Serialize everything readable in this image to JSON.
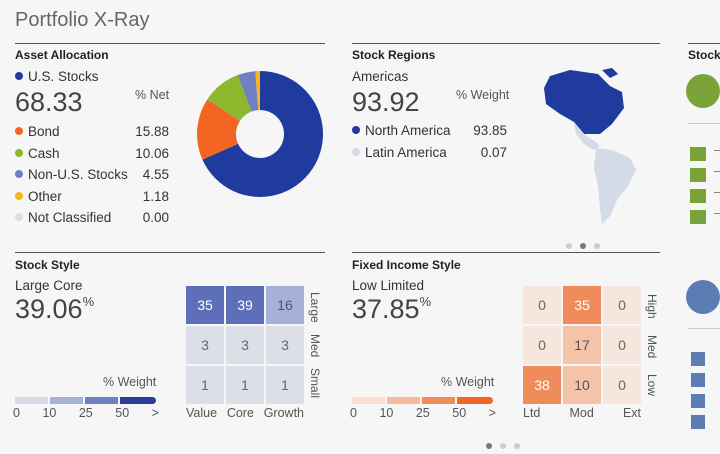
{
  "page": {
    "title": "Portfolio X-Ray"
  },
  "asset_allocation": {
    "title": "Asset Allocation",
    "headline_label": "U.S. Stocks",
    "headline_value": "68.33",
    "unit": "% Net",
    "items": [
      {
        "label": "Bond",
        "value": "15.88",
        "color": "#f26522"
      },
      {
        "label": "Cash",
        "value": "10.06",
        "color": "#8db82e"
      },
      {
        "label": "Non-U.S. Stocks",
        "value": "4.55",
        "color": "#6f80c0"
      },
      {
        "label": "Other",
        "value": "1.18",
        "color": "#f9b51a"
      },
      {
        "label": "Not Classified",
        "value": "0.00",
        "color": "#dddddd"
      }
    ],
    "us_color": "#1f3b9e",
    "chart_data": {
      "type": "pie",
      "labels": [
        "U.S. Stocks",
        "Bond",
        "Cash",
        "Non-U.S. Stocks",
        "Other",
        "Not Classified"
      ],
      "values": [
        68.33,
        15.88,
        10.06,
        4.55,
        1.18,
        0.0
      ],
      "colors": [
        "#1f3b9e",
        "#f26522",
        "#8db82e",
        "#6f80c0",
        "#f9b51a",
        "#dddddd"
      ]
    }
  },
  "stock_regions": {
    "title": "Stock Regions",
    "headline_label": "Americas",
    "headline_value": "93.92",
    "unit": "% Weight",
    "items": [
      {
        "label": "North America",
        "value": "93.85",
        "color": "#1f3b9e"
      },
      {
        "label": "Latin America",
        "value": "0.07",
        "color": "#d5dae8"
      }
    ]
  },
  "stock_sectors": {
    "title": "Stock"
  },
  "stock_style": {
    "title": "Stock Style",
    "headline_label": "Large Core",
    "headline_value": "39.06",
    "headline_unit": "%",
    "grid": [
      [
        "35",
        "39",
        "16"
      ],
      [
        "3",
        "3",
        "3"
      ],
      [
        "1",
        "1",
        "1"
      ]
    ],
    "col_labels": [
      "Value",
      "Core",
      "Growth"
    ],
    "row_labels": [
      "Large",
      "Med",
      "Small"
    ],
    "scale_label": "% Weight",
    "scale_ticks": [
      "0",
      "10",
      "25",
      "50",
      ">"
    ]
  },
  "fixed_income_style": {
    "title": "Fixed Income Style",
    "headline_label": "Low Limited",
    "headline_value": "37.85",
    "headline_unit": "%",
    "grid": [
      [
        "0",
        "35",
        "0"
      ],
      [
        "0",
        "17",
        "0"
      ],
      [
        "38",
        "10",
        "0"
      ]
    ],
    "col_labels": [
      "Ltd",
      "Mod",
      "Ext"
    ],
    "row_labels": [
      "High",
      "Med",
      "Low"
    ],
    "scale_label": "% Weight",
    "scale_ticks": [
      "0",
      "10",
      "25",
      "50",
      ">"
    ]
  }
}
